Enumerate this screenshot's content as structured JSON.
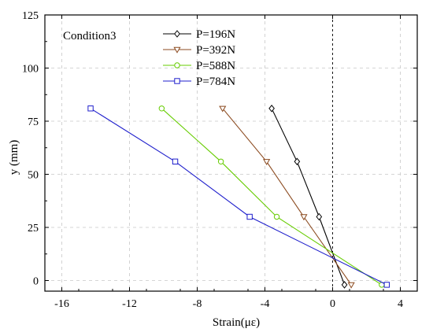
{
  "chart_data": {
    "type": "line",
    "annotation": "Condition3",
    "xlabel": "Strain(με)",
    "ylabel": "y (mm)",
    "xlim": [
      -17,
      5
    ],
    "ylim": [
      -5,
      125
    ],
    "xticks": [
      -16,
      -12,
      -8,
      -4,
      0,
      4
    ],
    "yticks": [
      0,
      25,
      50,
      75,
      100,
      125
    ],
    "grid": true,
    "legend_position": "top-center",
    "series": [
      {
        "name": "P=196N",
        "color": "#000000",
        "marker": "diamond",
        "points": [
          [
            -3.6,
            81
          ],
          [
            -2.1,
            56
          ],
          [
            -0.8,
            30
          ],
          [
            0.7,
            -2
          ]
        ]
      },
      {
        "name": "P=392N",
        "color": "#8b4a1f",
        "marker": "triangle-down",
        "points": [
          [
            -6.5,
            81
          ],
          [
            -3.9,
            56
          ],
          [
            -1.7,
            30
          ],
          [
            1.1,
            -2
          ]
        ]
      },
      {
        "name": "P=588N",
        "color": "#66cc00",
        "marker": "circle",
        "points": [
          [
            -10.1,
            81
          ],
          [
            -6.6,
            56
          ],
          [
            -3.3,
            30
          ],
          [
            2.9,
            -2
          ]
        ]
      },
      {
        "name": "P=784N",
        "color": "#1f1fcc",
        "marker": "square",
        "points": [
          [
            -14.3,
            81
          ],
          [
            -9.3,
            56
          ],
          [
            -4.9,
            30
          ],
          [
            3.2,
            -2
          ]
        ]
      }
    ]
  }
}
